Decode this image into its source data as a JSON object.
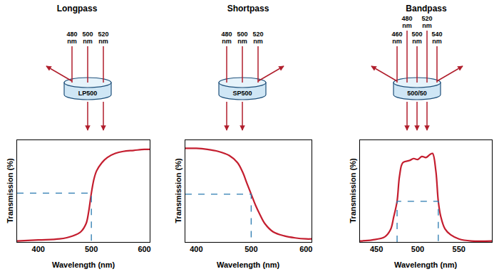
{
  "chart_data": [
    {
      "type": "line",
      "title": "Longpass",
      "xlabel": "Wavelength (nm)",
      "ylabel": "Transmission (%)",
      "xlim": [
        360,
        610
      ],
      "xticks": [
        400,
        500,
        600
      ],
      "ylim": [
        0,
        100
      ],
      "tick_labels": "x",
      "grid": false,
      "series": [
        {
          "color": "#c41e2f",
          "line_style": "solid",
          "x": [
            360,
            400,
            440,
            465,
            480,
            490,
            495,
            500,
            505,
            510,
            520,
            530,
            545,
            560,
            580,
            600,
            610
          ],
          "values": [
            1,
            2,
            3,
            6,
            10,
            18,
            30,
            48,
            62,
            70,
            78,
            83,
            87,
            89,
            90,
            91,
            91
          ]
        },
        {
          "color": "#2a7ab0",
          "line_style": "dashed",
          "x": [
            360,
            500,
            500
          ],
          "values": [
            48,
            48,
            0
          ]
        }
      ]
    },
    {
      "type": "line",
      "title": "Shortpass",
      "xlabel": "Wavelength (nm)",
      "ylabel": "Transmission (%)",
      "xlim": [
        380,
        610
      ],
      "xticks": [
        400,
        500,
        600
      ],
      "ylim": [
        0,
        100
      ],
      "tick_labels": "x",
      "grid": false,
      "series": [
        {
          "color": "#c41e2f",
          "line_style": "solid",
          "x": [
            380,
            400,
            420,
            440,
            460,
            475,
            485,
            492,
            500,
            508,
            515,
            525,
            540,
            560,
            580,
            600,
            610
          ],
          "values": [
            92,
            92,
            91,
            89,
            85,
            78,
            68,
            58,
            47,
            36,
            28,
            18,
            10,
            6,
            4,
            3,
            3
          ]
        },
        {
          "color": "#2a7ab0",
          "line_style": "dashed",
          "x": [
            380,
            500,
            500
          ],
          "values": [
            47,
            47,
            0
          ]
        }
      ]
    },
    {
      "type": "line",
      "title": "Bandpass",
      "xlabel": "Wavelength (nm)",
      "ylabel": "Transmission (%)",
      "xlim": [
        430,
        590
      ],
      "xticks": [
        450,
        500,
        550
      ],
      "ylim": [
        0,
        100
      ],
      "tick_labels": "x",
      "grid": false,
      "series": [
        {
          "color": "#c41e2f",
          "line_style": "solid",
          "x": [
            430,
            445,
            460,
            467,
            471,
            475,
            478,
            482,
            490,
            495,
            500,
            505,
            510,
            515,
            518,
            522,
            525,
            528,
            533,
            540,
            550,
            565,
            590
          ],
          "values": [
            1,
            2,
            5,
            12,
            25,
            40,
            65,
            78,
            80,
            82,
            81,
            84,
            83,
            86,
            87,
            70,
            40,
            25,
            13,
            7,
            3,
            1,
            1
          ]
        },
        {
          "color": "#2a7ab0",
          "line_style": "dashed",
          "x": [
            475,
            475,
            525,
            525
          ],
          "values": [
            0,
            40,
            40,
            0
          ]
        }
      ]
    }
  ],
  "filters": [
    {
      "label": "LP500",
      "wavelengths": [
        480,
        500,
        520
      ],
      "unit": "nm",
      "transmitted": [
        500,
        520
      ]
    },
    {
      "label": "SP500",
      "wavelengths": [
        480,
        500,
        520
      ],
      "unit": "nm",
      "transmitted": [
        480,
        500
      ]
    },
    {
      "label": "500/50",
      "wavelengths": [
        460,
        480,
        500,
        520,
        540
      ],
      "unit": "nm",
      "transmitted": [
        480,
        500,
        520
      ]
    }
  ]
}
